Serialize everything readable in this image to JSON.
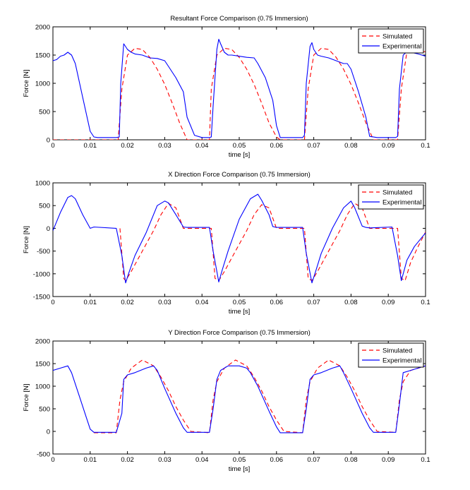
{
  "colors": {
    "simulated": "#ff0000",
    "experimental": "#0000ff",
    "axes": "#000000"
  },
  "chart_data": [
    {
      "type": "line",
      "title": "Resultant Force Comparison (0.75 Immersion)",
      "xlabel": "time [s]",
      "ylabel": "Force [N]",
      "xlim": [
        0,
        0.1
      ],
      "ylim": [
        0,
        2000
      ],
      "xticks": [
        0,
        0.01,
        0.02,
        0.03,
        0.04,
        0.05,
        0.06,
        0.07,
        0.08,
        0.09,
        0.1
      ],
      "yticks": [
        0,
        500,
        1000,
        1500,
        2000
      ],
      "xtick_labels": [
        "0",
        "0.01",
        "0.02",
        "0.03",
        "0.04",
        "0.05",
        "0.06",
        "0.07",
        "0.08",
        "0.09",
        "0.1"
      ],
      "ytick_labels": [
        "0",
        "500",
        "1000",
        "1500",
        "2000"
      ],
      "legend": [
        "Simulated",
        "Experimental"
      ],
      "legend_position": "top-right",
      "series": [
        {
          "name": "Simulated",
          "style": "dashed",
          "x": [
            0,
            0.004,
            0.0175,
            0.0185,
            0.02,
            0.022,
            0.024,
            0.026,
            0.028,
            0.03,
            0.032,
            0.034,
            0.036,
            0.042,
            0.0425,
            0.044,
            0.046,
            0.048,
            0.05,
            0.052,
            0.054,
            0.056,
            0.058,
            0.06,
            0.061,
            0.0675,
            0.0685,
            0.07,
            0.072,
            0.074,
            0.076,
            0.078,
            0.08,
            0.082,
            0.084,
            0.086,
            0.0925,
            0.0935,
            0.095,
            0.1
          ],
          "values": [
            0,
            0,
            0,
            900,
            1500,
            1620,
            1600,
            1460,
            1250,
            980,
            650,
            300,
            0,
            0,
            900,
            1500,
            1620,
            1600,
            1460,
            1250,
            980,
            650,
            300,
            50,
            0,
            0,
            900,
            1500,
            1620,
            1600,
            1460,
            1250,
            980,
            650,
            300,
            0,
            0,
            900,
            1560,
            1560
          ]
        },
        {
          "name": "Experimental",
          "style": "solid",
          "x": [
            0,
            0.001,
            0.002,
            0.003,
            0.004,
            0.005,
            0.006,
            0.008,
            0.01,
            0.011,
            0.012,
            0.015,
            0.017,
            0.0178,
            0.0182,
            0.019,
            0.0195,
            0.02,
            0.021,
            0.022,
            0.024,
            0.026,
            0.028,
            0.03,
            0.031,
            0.033,
            0.035,
            0.036,
            0.038,
            0.04,
            0.042,
            0.0425,
            0.043,
            0.044,
            0.0445,
            0.045,
            0.046,
            0.047,
            0.048,
            0.05,
            0.052,
            0.054,
            0.055,
            0.057,
            0.059,
            0.06,
            0.061,
            0.063,
            0.065,
            0.067,
            0.0675,
            0.068,
            0.069,
            0.0695,
            0.07,
            0.071,
            0.072,
            0.074,
            0.076,
            0.078,
            0.079,
            0.08,
            0.082,
            0.084,
            0.085,
            0.087,
            0.09,
            0.092,
            0.0925,
            0.093,
            0.094,
            0.095,
            0.096,
            0.098,
            0.1
          ],
          "values": [
            1400,
            1420,
            1480,
            1500,
            1550,
            1500,
            1350,
            750,
            150,
            50,
            40,
            40,
            40,
            50,
            1000,
            1700,
            1650,
            1600,
            1550,
            1520,
            1500,
            1450,
            1440,
            1400,
            1300,
            1100,
            850,
            400,
            80,
            40,
            40,
            50,
            600,
            1600,
            1780,
            1700,
            1550,
            1500,
            1500,
            1480,
            1460,
            1450,
            1350,
            1100,
            700,
            250,
            40,
            40,
            40,
            40,
            80,
            1000,
            1650,
            1720,
            1600,
            1500,
            1480,
            1450,
            1400,
            1350,
            1350,
            1250,
            850,
            400,
            60,
            40,
            40,
            40,
            60,
            900,
            1500,
            1560,
            1550,
            1520,
            1480
          ]
        }
      ]
    },
    {
      "type": "line",
      "title": "X Direction Force Comparison (0.75 Immersion)",
      "xlabel": "time [s]",
      "ylabel": "Force [N]",
      "xlim": [
        0,
        0.1
      ],
      "ylim": [
        -1500,
        1000
      ],
      "xticks": [
        0,
        0.01,
        0.02,
        0.03,
        0.04,
        0.05,
        0.06,
        0.07,
        0.08,
        0.09,
        0.1
      ],
      "yticks": [
        -1500,
        -1000,
        -500,
        0,
        500,
        1000
      ],
      "xtick_labels": [
        "0",
        "0.01",
        "0.02",
        "0.03",
        "0.04",
        "0.05",
        "0.06",
        "0.07",
        "0.08",
        "0.09",
        "0.1"
      ],
      "ytick_labels": [
        "-1500",
        "-1000",
        "-500",
        "0",
        "500",
        "1000"
      ],
      "legend": [
        "Simulated",
        "Experimental"
      ],
      "legend_position": "top-right",
      "series": [
        {
          "name": "Simulated",
          "style": "dashed",
          "x": [
            0.018,
            0.019,
            0.0195,
            0.021,
            0.023,
            0.025,
            0.027,
            0.029,
            0.031,
            0.033,
            0.035,
            0.0425,
            0.0435,
            0.0445,
            0.046,
            0.048,
            0.05,
            0.052,
            0.054,
            0.056,
            0.058,
            0.06,
            0.0675,
            0.0685,
            0.0695,
            0.071,
            0.073,
            0.075,
            0.077,
            0.079,
            0.081,
            0.083,
            0.085,
            0.0925,
            0.0935,
            0.0945,
            0.096,
            0.098,
            0.1
          ],
          "values": [
            0,
            -1100,
            -1150,
            -950,
            -650,
            -350,
            -50,
            300,
            550,
            450,
            0,
            0,
            -1100,
            -1150,
            -950,
            -650,
            -350,
            -50,
            300,
            520,
            450,
            0,
            0,
            -1100,
            -1150,
            -950,
            -650,
            -350,
            -50,
            300,
            550,
            450,
            0,
            0,
            -1100,
            -1150,
            -750,
            -400,
            -80
          ]
        },
        {
          "name": "Experimental",
          "style": "solid",
          "x": [
            0,
            0.002,
            0.004,
            0.005,
            0.006,
            0.008,
            0.01,
            0.011,
            0.017,
            0.0185,
            0.0195,
            0.0205,
            0.022,
            0.025,
            0.028,
            0.03,
            0.031,
            0.033,
            0.035,
            0.036,
            0.042,
            0.043,
            0.0445,
            0.0455,
            0.047,
            0.05,
            0.053,
            0.055,
            0.056,
            0.058,
            0.059,
            0.06,
            0.067,
            0.068,
            0.0695,
            0.0705,
            0.072,
            0.075,
            0.078,
            0.08,
            0.081,
            0.083,
            0.084,
            0.085,
            0.091,
            0.0925,
            0.0935,
            0.095,
            0.097,
            0.1
          ],
          "values": [
            -50,
            350,
            680,
            720,
            650,
            300,
            0,
            30,
            0,
            -600,
            -1200,
            -950,
            -600,
            -100,
            500,
            600,
            560,
            300,
            30,
            20,
            20,
            -500,
            -1180,
            -900,
            -500,
            200,
            650,
            750,
            620,
            300,
            40,
            20,
            20,
            -550,
            -1200,
            -950,
            -550,
            0,
            450,
            600,
            450,
            50,
            20,
            10,
            30,
            -600,
            -1150,
            -700,
            -400,
            -100
          ]
        }
      ]
    },
    {
      "type": "line",
      "title": "Y Direction Force Comparison (0.75 Immersion)",
      "xlabel": "time [s]",
      "ylabel": "Force [N]",
      "xlim": [
        0,
        0.1
      ],
      "ylim": [
        -500,
        2000
      ],
      "xticks": [
        0,
        0.01,
        0.02,
        0.03,
        0.04,
        0.05,
        0.06,
        0.07,
        0.08,
        0.09,
        0.1
      ],
      "yticks": [
        -500,
        0,
        500,
        1000,
        1500,
        2000
      ],
      "xtick_labels": [
        "0",
        "0.01",
        "0.02",
        "0.03",
        "0.04",
        "0.05",
        "0.06",
        "0.07",
        "0.08",
        "0.09",
        "0.1"
      ],
      "ytick_labels": [
        "-500",
        "0",
        "500",
        "1000",
        "1500",
        "2000"
      ],
      "legend": [
        "Simulated",
        "Experimental"
      ],
      "legend_position": "top-right",
      "series": [
        {
          "name": "Simulated",
          "style": "dashed",
          "x": [
            0.011,
            0.017,
            0.018,
            0.019,
            0.021,
            0.024,
            0.027,
            0.029,
            0.031,
            0.033,
            0.035,
            0.037,
            0.042,
            0.043,
            0.044,
            0.046,
            0.049,
            0.052,
            0.054,
            0.056,
            0.058,
            0.06,
            0.062,
            0.067,
            0.068,
            0.069,
            0.071,
            0.074,
            0.077,
            0.079,
            0.081,
            0.083,
            0.085,
            0.087,
            0.092,
            0.093,
            0.094,
            0.096,
            0.1
          ],
          "values": [
            -30,
            -30,
            700,
            1100,
            1400,
            1580,
            1450,
            1200,
            900,
            550,
            250,
            0,
            -30,
            700,
            1100,
            1400,
            1580,
            1450,
            1200,
            900,
            550,
            250,
            0,
            -30,
            700,
            1100,
            1400,
            1580,
            1450,
            1200,
            900,
            550,
            250,
            0,
            -20,
            700,
            1100,
            1350,
            1450
          ]
        },
        {
          "name": "Experimental",
          "style": "solid",
          "x": [
            0,
            0.002,
            0.004,
            0.005,
            0.007,
            0.009,
            0.01,
            0.011,
            0.017,
            0.0185,
            0.019,
            0.02,
            0.022,
            0.025,
            0.027,
            0.028,
            0.03,
            0.033,
            0.035,
            0.036,
            0.042,
            0.043,
            0.044,
            0.045,
            0.047,
            0.05,
            0.052,
            0.053,
            0.055,
            0.058,
            0.06,
            0.061,
            0.067,
            0.068,
            0.069,
            0.07,
            0.072,
            0.075,
            0.077,
            0.078,
            0.08,
            0.083,
            0.085,
            0.086,
            0.092,
            0.093,
            0.094,
            0.096,
            0.098,
            0.1
          ],
          "values": [
            1350,
            1400,
            1450,
            1300,
            800,
            300,
            50,
            -20,
            -20,
            400,
            1150,
            1250,
            1300,
            1400,
            1450,
            1350,
            950,
            400,
            80,
            -20,
            -20,
            500,
            1150,
            1350,
            1450,
            1450,
            1400,
            1300,
            1000,
            450,
            100,
            -30,
            -30,
            500,
            1150,
            1250,
            1300,
            1400,
            1450,
            1300,
            950,
            400,
            80,
            -20,
            -20,
            600,
            1300,
            1350,
            1400,
            1450
          ]
        }
      ]
    }
  ]
}
